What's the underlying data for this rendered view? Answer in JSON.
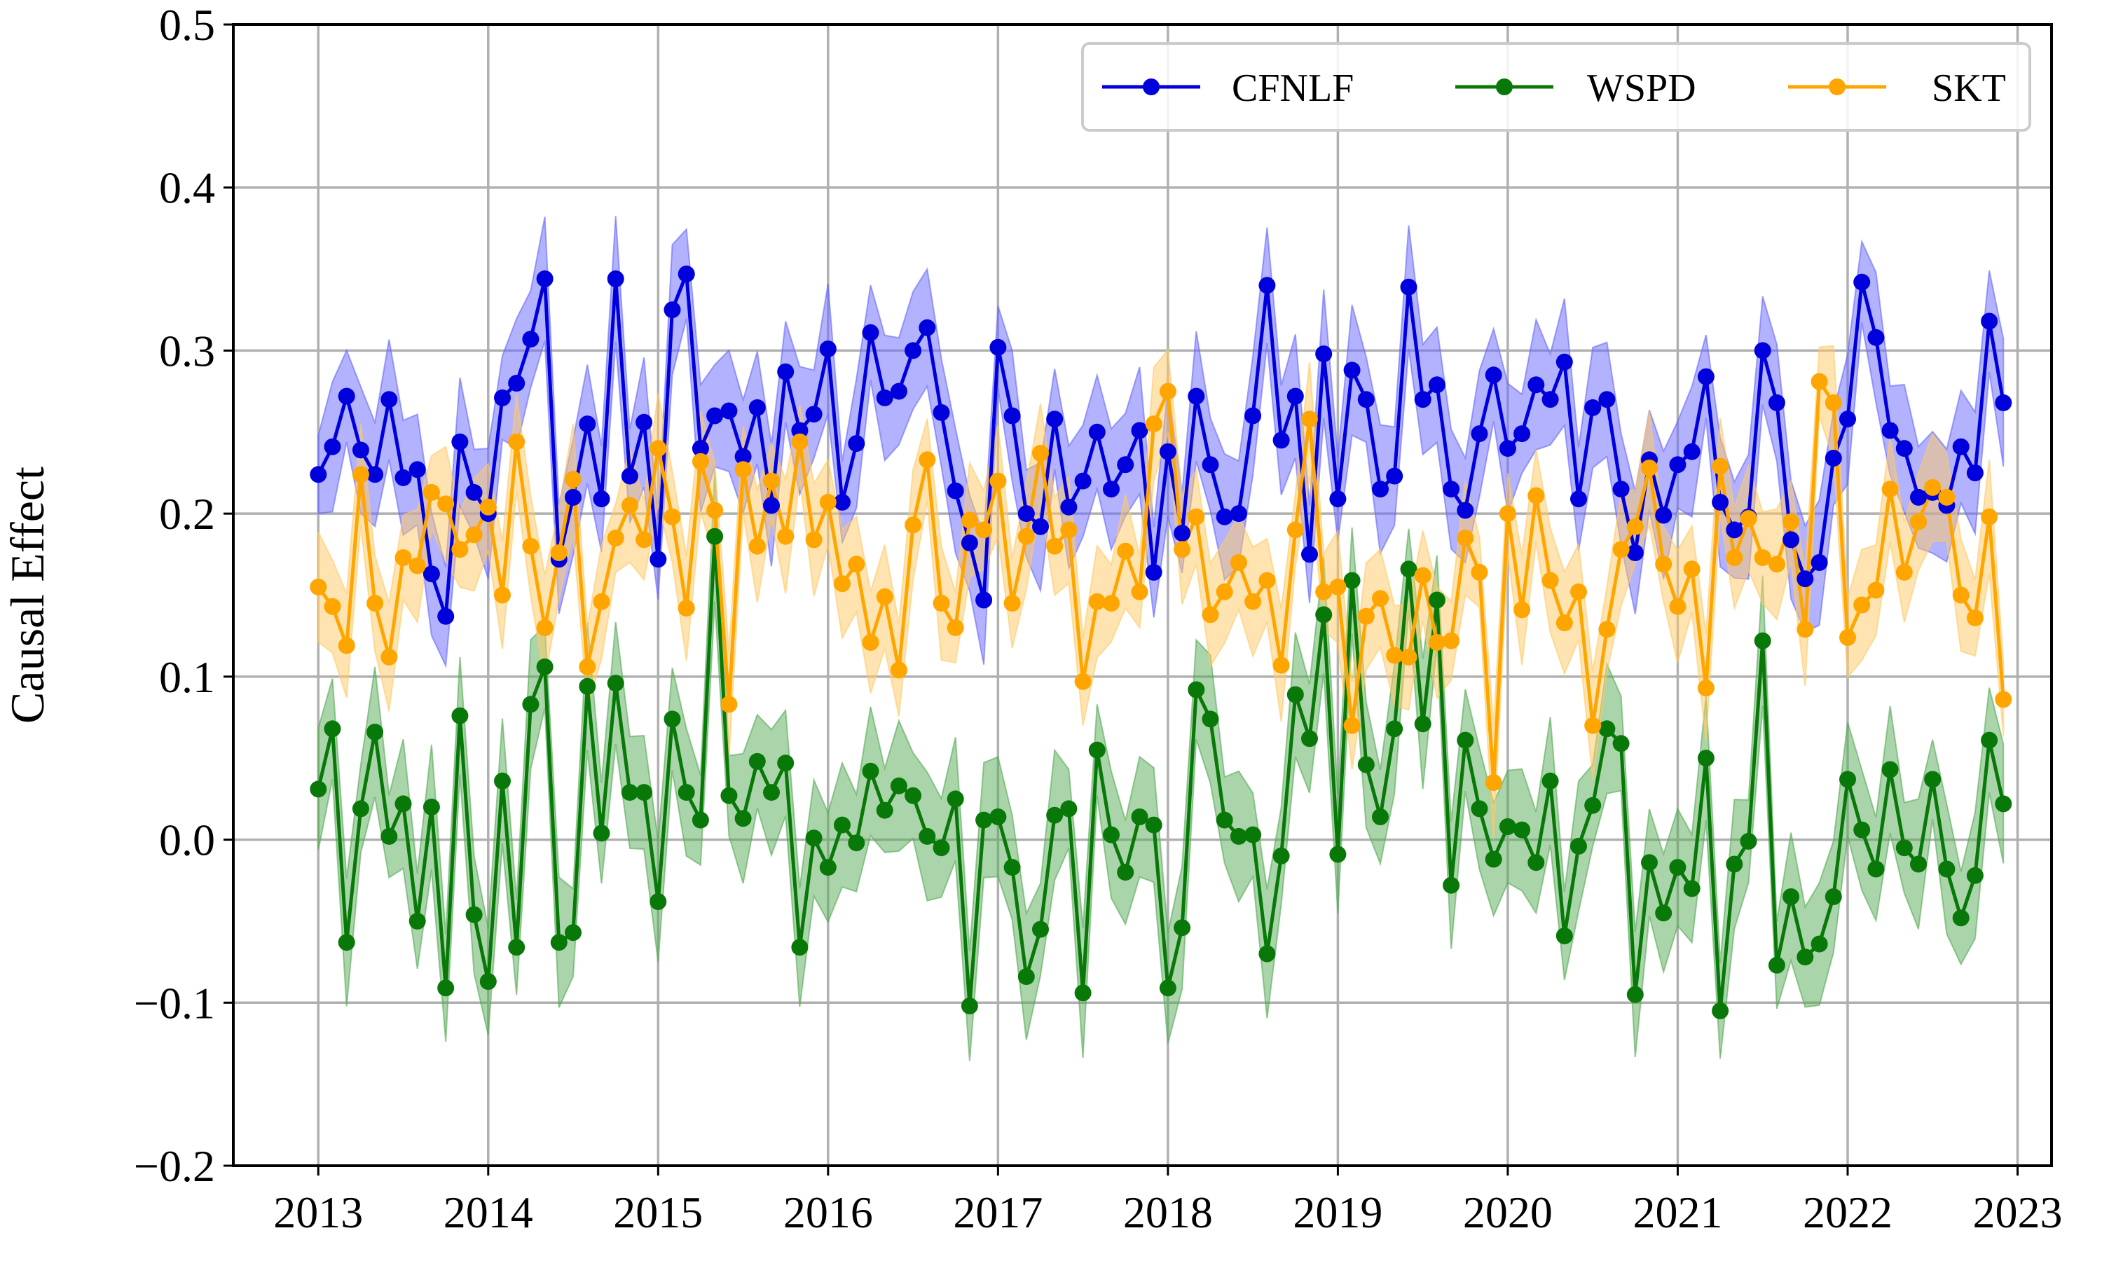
{
  "chart_data": {
    "type": "line",
    "title": "",
    "xlabel": "",
    "ylabel": "Causal Effect",
    "xlim": [
      2012.5,
      2023.2
    ],
    "ylim": [
      -0.2,
      0.5
    ],
    "grid": true,
    "legend_position": "top-right",
    "x_ticks": [
      2013,
      2014,
      2015,
      2016,
      2017,
      2018,
      2019,
      2020,
      2021,
      2022,
      2023
    ],
    "x_tick_labels": [
      "2013",
      "2014",
      "2015",
      "2016",
      "2017",
      "2018",
      "2019",
      "2020",
      "2021",
      "2022",
      "2023"
    ],
    "y_ticks": [
      -0.2,
      -0.1,
      0.0,
      0.1,
      0.2,
      0.3,
      0.4,
      0.5
    ],
    "y_tick_labels": [
      "−0.2",
      "−0.1",
      "0.0",
      "0.1",
      "0.2",
      "0.3",
      "0.4",
      "0.5"
    ],
    "x_start": 2013.0,
    "x_step_months": 1,
    "series": [
      {
        "name": "CFNLF",
        "color": "#0000dd",
        "band_color": "#6666ff",
        "band_halfwidth": 0.032,
        "values": [
          0.224,
          0.241,
          0.272,
          0.239,
          0.224,
          0.27,
          0.222,
          0.227,
          0.163,
          0.137,
          0.244,
          0.213,
          0.2,
          0.271,
          0.28,
          0.307,
          0.344,
          0.172,
          0.21,
          0.255,
          0.209,
          0.344,
          0.223,
          0.256,
          0.172,
          0.325,
          0.347,
          0.24,
          0.26,
          0.263,
          0.235,
          0.265,
          0.205,
          0.287,
          0.251,
          0.261,
          0.301,
          0.207,
          0.243,
          0.311,
          0.271,
          0.275,
          0.3,
          0.314,
          0.262,
          0.214,
          0.182,
          0.147,
          0.302,
          0.26,
          0.2,
          0.192,
          0.258,
          0.204,
          0.22,
          0.25,
          0.215,
          0.23,
          0.251,
          0.164,
          0.238,
          0.188,
          0.272,
          0.23,
          0.198,
          0.2,
          0.26,
          0.34,
          0.245,
          0.272,
          0.175,
          0.298,
          0.209,
          0.288,
          0.27,
          0.215,
          0.223,
          0.339,
          0.27,
          0.279,
          0.215,
          0.202,
          0.249,
          0.285,
          0.24,
          0.249,
          0.279,
          0.27,
          0.293,
          0.209,
          0.265,
          0.27,
          0.215,
          0.176,
          0.233,
          0.199,
          0.23,
          0.238,
          0.284,
          0.207,
          0.19,
          0.198,
          0.3,
          0.268,
          0.184,
          0.16,
          0.17,
          0.234,
          0.258,
          0.342,
          0.308,
          0.251,
          0.24,
          0.21,
          0.213,
          0.205,
          0.241,
          0.225,
          0.318,
          0.268
        ]
      },
      {
        "name": "WSPD",
        "color": "#087808",
        "band_color": "#55aa55",
        "band_halfwidth": 0.032,
        "values": [
          0.031,
          0.068,
          -0.063,
          0.019,
          0.066,
          0.002,
          0.022,
          -0.05,
          0.02,
          -0.091,
          0.076,
          -0.046,
          -0.087,
          0.036,
          -0.066,
          0.083,
          0.106,
          -0.063,
          -0.057,
          0.094,
          0.004,
          0.096,
          0.029,
          0.029,
          -0.038,
          0.074,
          0.029,
          0.012,
          0.186,
          0.027,
          0.013,
          0.048,
          0.029,
          0.047,
          -0.066,
          0.001,
          -0.017,
          0.009,
          -0.002,
          0.042,
          0.018,
          0.033,
          0.027,
          0.002,
          -0.005,
          0.025,
          -0.102,
          0.012,
          0.014,
          -0.017,
          -0.084,
          -0.055,
          0.015,
          0.019,
          -0.094,
          0.055,
          0.003,
          -0.02,
          0.014,
          0.009,
          -0.091,
          -0.054,
          0.092,
          0.074,
          0.012,
          0.002,
          0.003,
          -0.07,
          -0.01,
          0.089,
          0.062,
          0.138,
          -0.009,
          0.159,
          0.046,
          0.014,
          0.068,
          0.166,
          0.071,
          0.147,
          -0.028,
          0.061,
          0.019,
          -0.012,
          0.008,
          0.006,
          -0.014,
          0.036,
          -0.059,
          -0.004,
          0.021,
          0.068,
          0.059,
          -0.095,
          -0.014,
          -0.045,
          -0.017,
          -0.03,
          0.05,
          -0.105,
          -0.015,
          -0.001,
          0.122,
          -0.077,
          -0.035,
          -0.072,
          -0.064,
          -0.035,
          0.037,
          0.006,
          -0.018,
          0.043,
          -0.005,
          -0.015,
          0.037,
          -0.018,
          -0.048,
          -0.022,
          0.061,
          0.022
        ]
      },
      {
        "name": "SKT",
        "color": "#ffa500",
        "band_color": "#ffc966",
        "band_halfwidth": 0.028,
        "values": [
          0.155,
          0.143,
          0.119,
          0.224,
          0.145,
          0.112,
          0.173,
          0.168,
          0.213,
          0.206,
          0.178,
          0.187,
          0.204,
          0.15,
          0.244,
          0.18,
          0.13,
          0.176,
          0.221,
          0.106,
          0.146,
          0.185,
          0.205,
          0.184,
          0.24,
          0.198,
          0.142,
          0.232,
          0.202,
          0.083,
          0.227,
          0.18,
          0.22,
          0.186,
          0.244,
          0.184,
          0.207,
          0.157,
          0.169,
          0.121,
          0.149,
          0.104,
          0.193,
          0.233,
          0.145,
          0.13,
          0.196,
          0.19,
          0.22,
          0.145,
          0.186,
          0.237,
          0.18,
          0.19,
          0.097,
          0.146,
          0.145,
          0.177,
          0.152,
          0.255,
          0.275,
          0.178,
          0.198,
          0.138,
          0.152,
          0.17,
          0.146,
          0.159,
          0.107,
          0.19,
          0.258,
          0.152,
          0.155,
          0.07,
          0.137,
          0.148,
          0.113,
          0.112,
          0.162,
          0.121,
          0.122,
          0.185,
          0.164,
          0.035,
          0.2,
          0.141,
          0.211,
          0.159,
          0.133,
          0.152,
          0.07,
          0.129,
          0.178,
          0.192,
          0.228,
          0.169,
          0.143,
          0.166,
          0.093,
          0.229,
          0.173,
          0.197,
          0.173,
          0.169,
          0.195,
          0.129,
          0.281,
          0.268,
          0.124,
          0.144,
          0.153,
          0.215,
          0.164,
          0.195,
          0.216,
          0.21,
          0.15,
          0.136,
          0.198,
          0.086
        ]
      }
    ]
  }
}
